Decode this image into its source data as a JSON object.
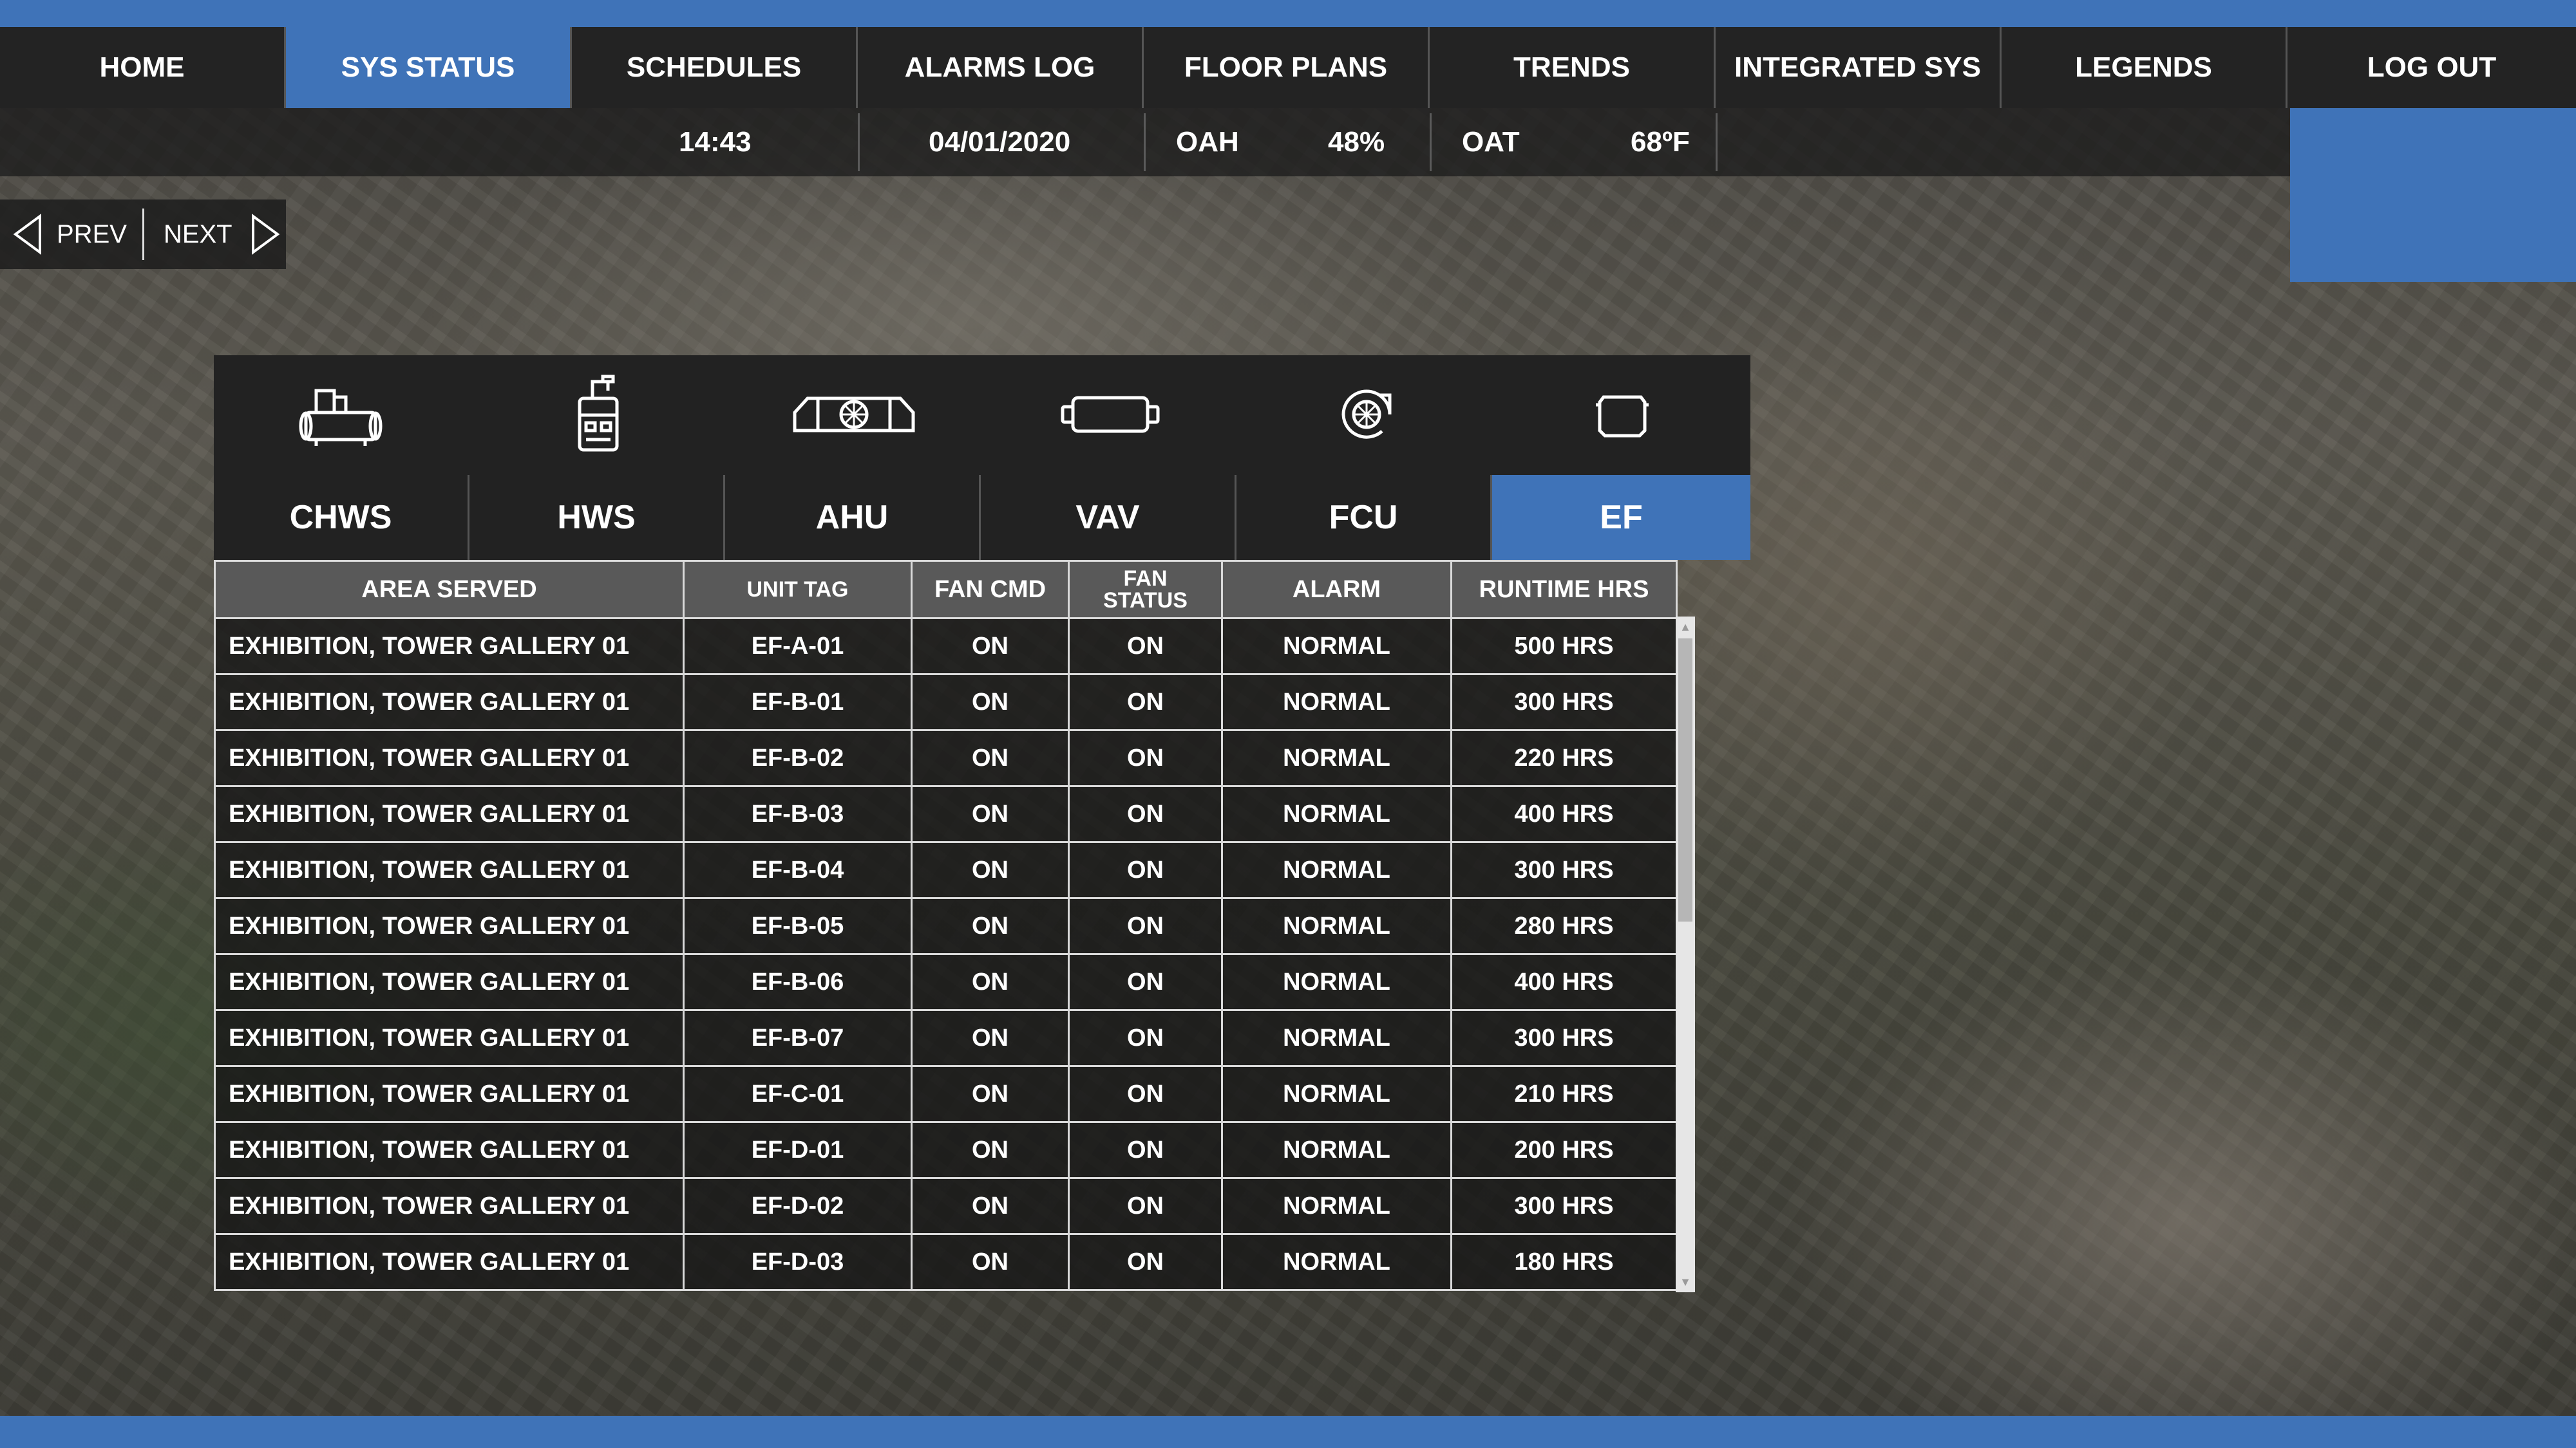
{
  "nav": {
    "items": [
      "HOME",
      "SYS STATUS",
      "SCHEDULES",
      "ALARMS LOG",
      "FLOOR PLANS",
      "TRENDS",
      "INTEGRATED SYS",
      "LEGENDS",
      "LOG OUT"
    ],
    "active_index": 1
  },
  "status": {
    "time": "14:43",
    "date": "04/01/2020",
    "oah_label": "OAH",
    "oah_value": "48%",
    "oat_label": "OAT",
    "oat_value": "68ºF"
  },
  "pager": {
    "prev": "PREV",
    "next": "NEXT"
  },
  "systems": {
    "tabs": [
      "CHWS",
      "HWS",
      "AHU",
      "VAV",
      "FCU",
      "EF"
    ],
    "icons": [
      "chiller-icon",
      "boiler-icon",
      "air-handler-icon",
      "vav-box-icon",
      "fan-coil-icon",
      "exhaust-fan-icon"
    ],
    "active_index": 5
  },
  "table": {
    "headers": [
      "AREA SERVED",
      "UNIT TAG",
      "FAN CMD",
      "FAN\nSTATUS",
      "ALARM",
      "RUNTIME HRS"
    ],
    "rows": [
      [
        "EXHIBITION, TOWER GALLERY 01",
        "EF-A-01",
        "ON",
        "ON",
        "NORMAL",
        "500 HRS"
      ],
      [
        "EXHIBITION, TOWER GALLERY 01",
        "EF-B-01",
        "ON",
        "ON",
        "NORMAL",
        "300 HRS"
      ],
      [
        "EXHIBITION, TOWER GALLERY 01",
        "EF-B-02",
        "ON",
        "ON",
        "NORMAL",
        "220 HRS"
      ],
      [
        "EXHIBITION, TOWER GALLERY 01",
        "EF-B-03",
        "ON",
        "ON",
        "NORMAL",
        "400 HRS"
      ],
      [
        "EXHIBITION, TOWER GALLERY 01",
        "EF-B-04",
        "ON",
        "ON",
        "NORMAL",
        "300 HRS"
      ],
      [
        "EXHIBITION, TOWER GALLERY 01",
        "EF-B-05",
        "ON",
        "ON",
        "NORMAL",
        "280 HRS"
      ],
      [
        "EXHIBITION, TOWER GALLERY 01",
        "EF-B-06",
        "ON",
        "ON",
        "NORMAL",
        "400 HRS"
      ],
      [
        "EXHIBITION, TOWER GALLERY 01",
        "EF-B-07",
        "ON",
        "ON",
        "NORMAL",
        "300 HRS"
      ],
      [
        "EXHIBITION, TOWER GALLERY 01",
        "EF-C-01",
        "ON",
        "ON",
        "NORMAL",
        "210 HRS"
      ],
      [
        "EXHIBITION, TOWER GALLERY 01",
        "EF-D-01",
        "ON",
        "ON",
        "NORMAL",
        "200 HRS"
      ],
      [
        "EXHIBITION, TOWER GALLERY 01",
        "EF-D-02",
        "ON",
        "ON",
        "NORMAL",
        "300 HRS"
      ],
      [
        "EXHIBITION, TOWER GALLERY 01",
        "EF-D-03",
        "ON",
        "ON",
        "NORMAL",
        "180 HRS"
      ]
    ]
  },
  "colors": {
    "accent": "#3f73b8",
    "nav_bg": "#232323",
    "header_bg": "#595959"
  }
}
